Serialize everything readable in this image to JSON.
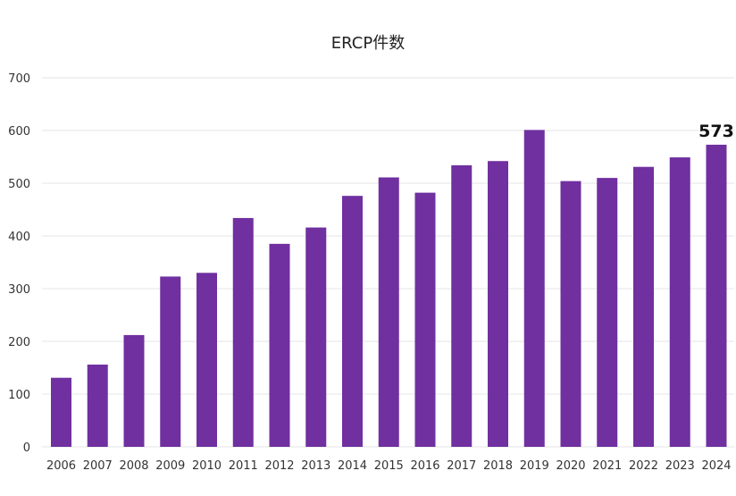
{
  "chart_data": {
    "type": "bar",
    "title": "ERCP件数",
    "xlabel": "",
    "ylabel": "",
    "ylim": [
      0,
      700
    ],
    "yticks": [
      0,
      100,
      200,
      300,
      400,
      500,
      600,
      700
    ],
    "grid": true,
    "legend": "none",
    "categories": [
      "2006",
      "2007",
      "2008",
      "2009",
      "2010",
      "2011",
      "2012",
      "2013",
      "2014",
      "2015",
      "2016",
      "2017",
      "2018",
      "2019",
      "2020",
      "2021",
      "2022",
      "2023",
      "2024"
    ],
    "values": [
      131,
      156,
      212,
      323,
      330,
      434,
      385,
      416,
      476,
      511,
      482,
      534,
      542,
      601,
      504,
      510,
      531,
      549,
      573
    ],
    "data_labels": [
      {
        "category": "2024",
        "text": "573"
      }
    ],
    "bar_color": "#7030a0"
  }
}
